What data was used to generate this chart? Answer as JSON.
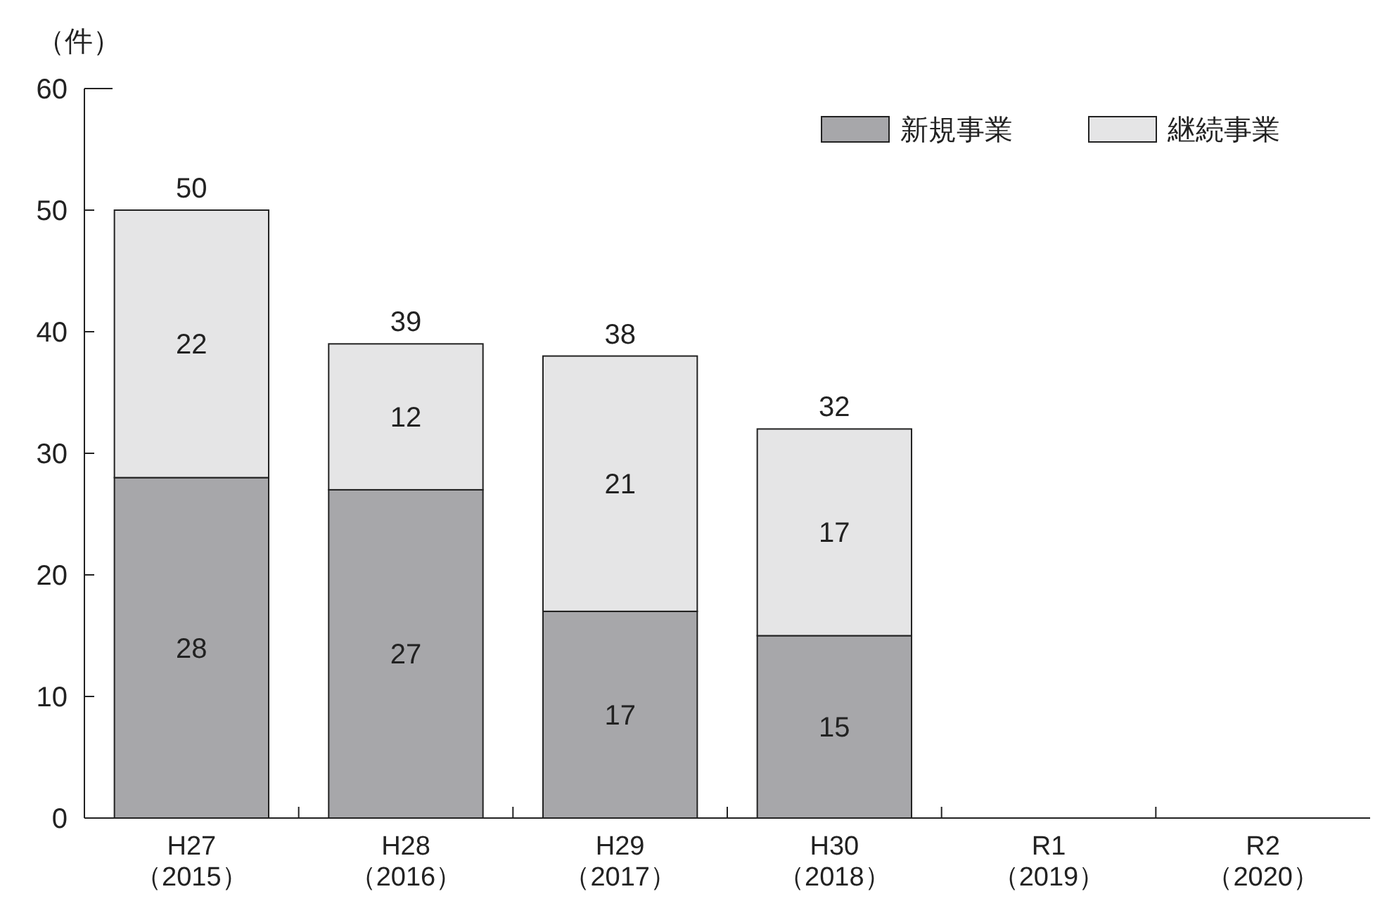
{
  "chart_data": {
    "type": "bar",
    "stacked": true,
    "ylabel": "（件）",
    "categories": [
      "H27\n（2015）",
      "H28\n（2016）",
      "H29\n（2017）",
      "H30\n（2018）",
      "R1\n（2019）",
      "R2\n（2020）"
    ],
    "series": [
      {
        "name": "新規事業",
        "color": "#a7a7aa",
        "values": [
          28,
          27,
          17,
          15,
          null,
          null
        ]
      },
      {
        "name": "継続事業",
        "color": "#e5e5e6",
        "values": [
          22,
          12,
          21,
          17,
          null,
          null
        ]
      }
    ],
    "totals": [
      "50",
      "39",
      "38",
      "32",
      null,
      null
    ],
    "data_labels": true,
    "legend": "top right",
    "ylim": [
      0,
      60
    ],
    "yticks": [
      0,
      10,
      20,
      30,
      40,
      50,
      60
    ]
  }
}
